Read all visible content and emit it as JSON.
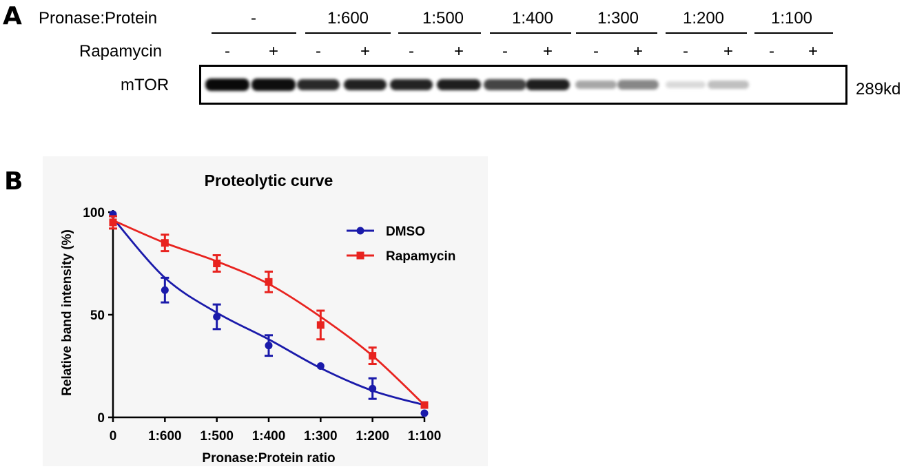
{
  "panel_a": {
    "letter": "A",
    "ratio_label": "Pronase:Protein",
    "drug_label": "Rapamycin",
    "protein_label": "mTOR",
    "size_label": "289kd",
    "groups": [
      "-",
      "1:600",
      "1:500",
      "1:400",
      "1:300",
      "1:200",
      "1:100"
    ],
    "lanes": [
      "-",
      "+",
      "-",
      "+",
      "-",
      "+",
      "-",
      "+",
      "-",
      "+",
      "-",
      "+",
      "-",
      "+"
    ],
    "band_intensity": [
      0.92,
      0.9,
      0.8,
      0.83,
      0.82,
      0.84,
      0.7,
      0.84,
      0.33,
      0.45,
      0.14,
      0.24,
      0.0,
      0.0
    ]
  },
  "panel_b": {
    "letter": "B"
  },
  "chart_data": {
    "type": "line",
    "title": "Proteolytic curve",
    "xlabel": "Pronase:Protein ratio",
    "ylabel": "Relative band intensity (%)",
    "categories": [
      "0",
      "1:600",
      "1:500",
      "1:400",
      "1:300",
      "1:200",
      "1:100"
    ],
    "ylim": [
      0,
      100
    ],
    "yticks": [
      0,
      50,
      100
    ],
    "legend_position": "top-right",
    "series": [
      {
        "name": "DMSO",
        "color": "#1a1aaa",
        "marker": "circle",
        "values": [
          99,
          62,
          49,
          35,
          25,
          14,
          2
        ],
        "errors": [
          0,
          6,
          6,
          5,
          0,
          5,
          0
        ],
        "fit": [
          97,
          68,
          51,
          38,
          24,
          13,
          6
        ]
      },
      {
        "name": "Rapamycin",
        "color": "#e8231f",
        "marker": "square",
        "values": [
          95,
          85,
          75,
          66,
          45,
          30,
          6
        ],
        "errors": [
          3,
          4,
          4,
          5,
          7,
          4,
          0
        ],
        "fit": [
          96,
          85,
          76,
          65,
          49,
          30,
          6
        ]
      }
    ]
  }
}
